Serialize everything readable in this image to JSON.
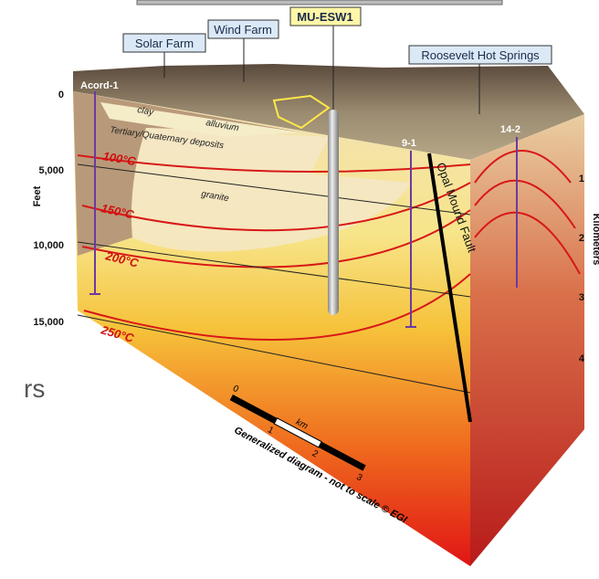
{
  "labels": {
    "solar": "Solar Farm",
    "wind": "Wind Farm",
    "well_main": "MU-ESW1",
    "springs": "Roosevelt Hot Springs"
  },
  "wells": [
    "Acord-1",
    "9-1",
    "14-2"
  ],
  "units": {
    "clay": "clay",
    "alluvium": "alluvium",
    "deposits": "Tertiary/Quaternary deposits",
    "granite": "granite"
  },
  "fault": "Opal Mound Fault",
  "isotherms": [
    "100°C",
    "150°C",
    "200°C",
    "250°C"
  ],
  "left_axis": {
    "title": "Feet",
    "ticks": [
      "0",
      "5,000",
      "10,000",
      "15,000"
    ]
  },
  "right_axis": {
    "title": "Kilometers",
    "ticks": [
      "1",
      "2",
      "3",
      "4"
    ]
  },
  "scale_bar": {
    "unit": "km",
    "ticks": [
      "0",
      "1",
      "2",
      "3"
    ]
  },
  "caption": "Generalized diagram - not to scale © EGI",
  "fragment": "rs"
}
